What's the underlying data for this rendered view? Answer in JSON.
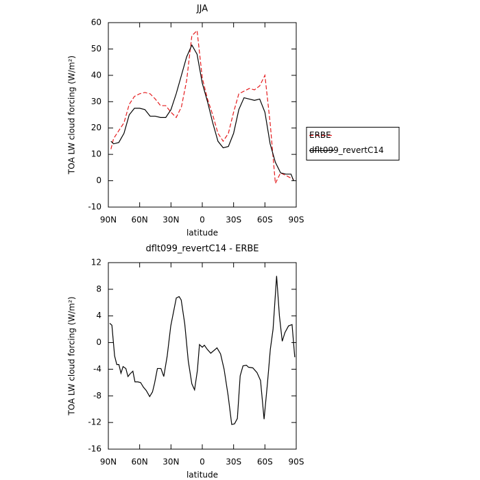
{
  "chart_data": [
    {
      "type": "line",
      "title": "JJA",
      "xlabel": "latitude",
      "ylabel": "TOA LW cloud forcing (W/m²)",
      "x": [
        87.5,
        85,
        80,
        75,
        70,
        65,
        60,
        55,
        50,
        45,
        40,
        35,
        30,
        25,
        20,
        15,
        10,
        5,
        0,
        -5,
        -10,
        -15,
        -20,
        -25,
        -30,
        -35,
        -40,
        -45,
        -50,
        -55,
        -60,
        -65,
        -70,
        -75,
        -80,
        -85,
        -87.5
      ],
      "series": [
        {
          "name": "ERBE",
          "color": "#e41a1c",
          "dashed": true,
          "values": [
            12,
            16,
            19,
            22,
            29,
            32,
            33,
            33.5,
            33,
            31,
            28.5,
            28.5,
            26,
            24,
            28,
            38,
            55,
            57,
            39,
            31,
            25,
            18,
            15,
            18,
            26,
            33,
            34,
            35,
            34.5,
            36,
            40,
            22,
            -1,
            3,
            2,
            1,
            0.5
          ]
        },
        {
          "name": "dflt099_revertC14",
          "color": "#000000",
          "dashed": false,
          "values": [
            15,
            14,
            14.5,
            18,
            25,
            27.5,
            27.5,
            27,
            24.5,
            24.5,
            24,
            24,
            27,
            33,
            40,
            47,
            51.5,
            48,
            37,
            30,
            22,
            15,
            12.5,
            13,
            18,
            27,
            31.5,
            31,
            30.5,
            31,
            26,
            14,
            7,
            3,
            2.5,
            2.5,
            0
          ]
        }
      ],
      "xlim": [
        90,
        -90
      ],
      "xticks": [
        {
          "value": 90,
          "label": "90N"
        },
        {
          "value": 60,
          "label": "60N"
        },
        {
          "value": 30,
          "label": "30N"
        },
        0,
        {
          "value": -30,
          "label": "30S"
        },
        {
          "value": -60,
          "label": "60S"
        },
        {
          "value": -90,
          "label": "90S"
        }
      ],
      "ylim": [
        -10,
        60
      ],
      "yticks": [
        -10,
        0,
        10,
        20,
        30,
        40,
        50,
        60
      ],
      "legend": "right"
    },
    {
      "type": "line",
      "title": "dflt099_revertC14 - ERBE",
      "xlabel": "latitude",
      "ylabel": "TOA LW cloud forcing (W/m²)",
      "x": [
        88.7,
        86.6,
        84,
        81.9,
        79.9,
        77.9,
        75.9,
        73.2,
        71.2,
        69.2,
        66.5,
        64.5,
        61.8,
        59.1,
        56.4,
        53.7,
        50.4,
        47.7,
        45.7,
        43,
        39.6,
        36.9,
        33.6,
        30.2,
        24.9,
        22.2,
        20.2,
        16.8,
        13.4,
        10,
        7.4,
        4.7,
        2.7,
        0,
        -2,
        -4.7,
        -8.1,
        -14.1,
        -17.5,
        -20.9,
        -24.8,
        -28.2,
        -30.9,
        -33.6,
        -36.3,
        -39,
        -42.3,
        -44.3,
        -48.4,
        -52.4,
        -55.8,
        -59.2,
        -62.5,
        -65.2,
        -67.8,
        -71.2,
        -73.9,
        -76.6,
        -79.2,
        -82.6,
        -86,
        -88.6
      ],
      "values": [
        2.9,
        2.6,
        -2,
        -3.3,
        -3.3,
        -4.6,
        -3.6,
        -3.9,
        -5.1,
        -4.7,
        -4.3,
        -5.9,
        -5.9,
        -6,
        -6.7,
        -7.2,
        -8.1,
        -7.4,
        -6.1,
        -3.9,
        -3.9,
        -5.1,
        -2,
        2.5,
        6.7,
        6.9,
        6.4,
        2.8,
        -2.8,
        -6.2,
        -7.1,
        -4.2,
        -0.3,
        -0.7,
        -0.4,
        -1,
        -1.6,
        -0.8,
        -1.7,
        -4,
        -8,
        -12.3,
        -12.2,
        -11.4,
        -5,
        -3.5,
        -3.4,
        -3.7,
        -3.8,
        -4.5,
        -5.7,
        -11.5,
        -6,
        -1,
        2,
        10,
        4,
        0.2,
        1.5,
        2.5,
        2.7,
        -2.2
      ],
      "color": "#000000",
      "xlim": [
        90,
        -90
      ],
      "xticks": [
        {
          "value": 90,
          "label": "90N"
        },
        {
          "value": 60,
          "label": "60N"
        },
        {
          "value": 30,
          "label": "30N"
        },
        0,
        {
          "value": -30,
          "label": "30S"
        },
        {
          "value": -60,
          "label": "60S"
        },
        {
          "value": -90,
          "label": "90S"
        }
      ],
      "ylim": [
        -16,
        12
      ],
      "yticks": [
        -16,
        -12,
        -8,
        -4,
        0,
        4,
        8,
        12
      ]
    }
  ]
}
